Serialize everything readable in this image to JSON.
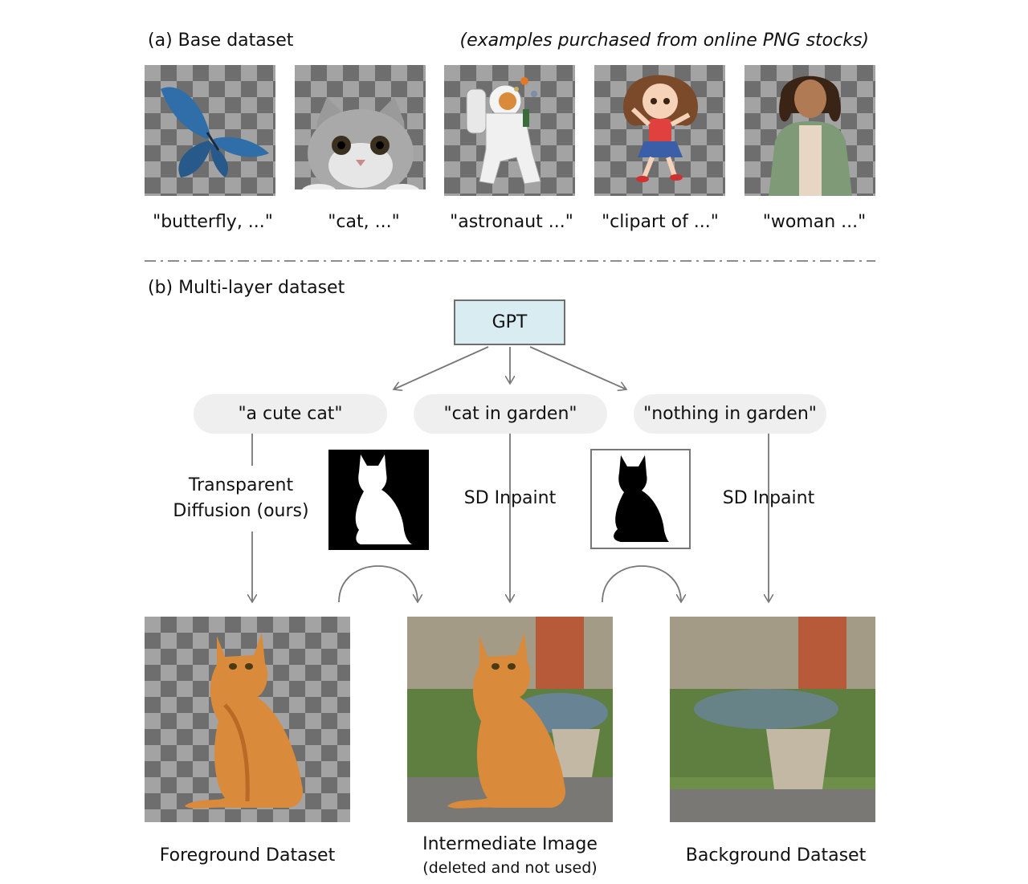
{
  "section_a": {
    "title": "(a) Base dataset",
    "note": "(examples purchased from online PNG stocks)",
    "examples": [
      {
        "caption": "\"butterfly, ...\"",
        "icon": "butterfly-icon"
      },
      {
        "caption": "\"cat, ...\"",
        "icon": "cat-face-icon"
      },
      {
        "caption": "\"astronaut ...\"",
        "icon": "astronaut-icon"
      },
      {
        "caption": "\"clipart of ...\"",
        "icon": "cartoon-girl-icon"
      },
      {
        "caption": "\"woman ...\"",
        "icon": "woman-icon"
      }
    ]
  },
  "section_b": {
    "title": "(b) Multi-layer dataset",
    "gpt_label": "GPT",
    "prompts": [
      "\"a cute cat\"",
      "\"cat in garden\"",
      "\"nothing in garden\""
    ],
    "steps": {
      "transparent_line1": "Transparent",
      "transparent_line2": "Diffusion (ours)",
      "sd_inpaint_1": "SD Inpaint",
      "sd_inpaint_2": "SD Inpaint"
    },
    "outputs": {
      "foreground": "Foreground Dataset",
      "intermediate": "Intermediate Image",
      "intermediate_note": "(deleted and not used)",
      "background": "Background Dataset"
    }
  },
  "colors": {
    "gpt_box_fill": "#d8ecf2",
    "pill_fill": "#efefef",
    "arrow": "#777777",
    "cat_orange": "#d98a3a"
  }
}
